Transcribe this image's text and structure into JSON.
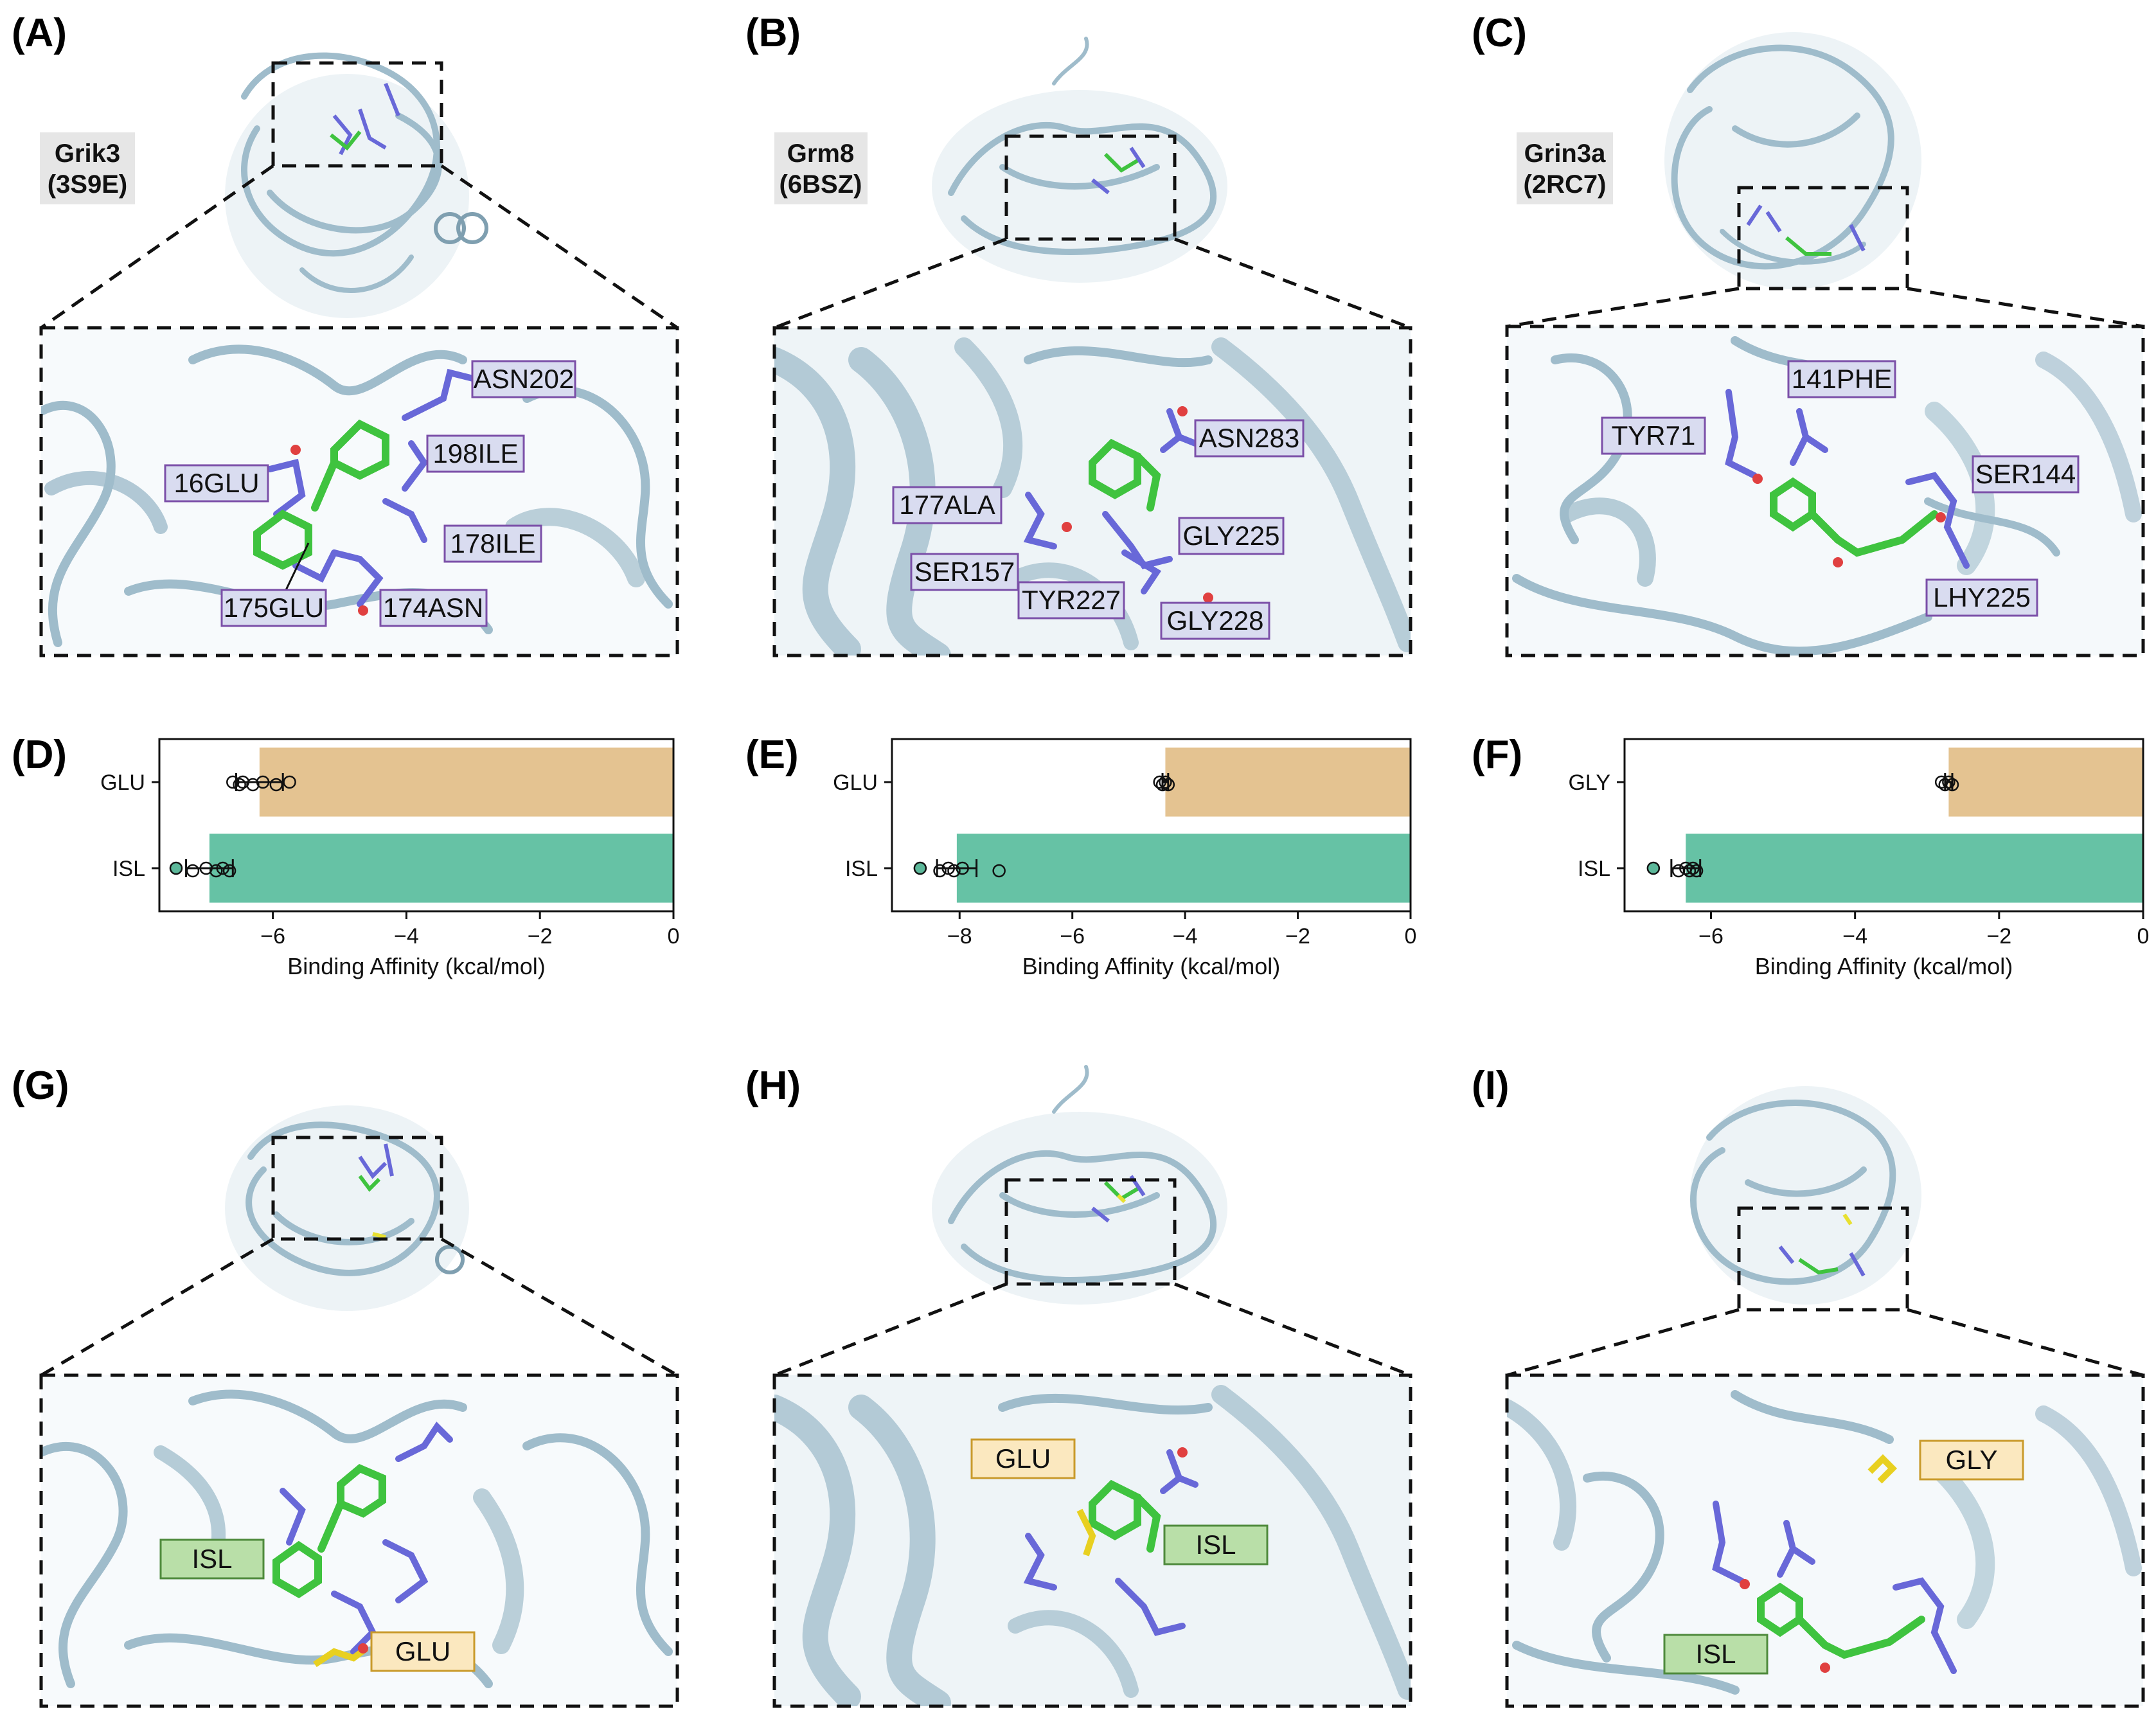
{
  "panels": {
    "A": {
      "label": "(A)",
      "protein": [
        "Grik3",
        "(3S9E)"
      ],
      "residues": [
        "ASN202",
        "198ILE",
        "16GLU",
        "178ILE",
        "175GLU",
        "174ASN"
      ]
    },
    "B": {
      "label": "(B)",
      "protein": [
        "Grm8",
        "(6BSZ)"
      ],
      "residues": [
        "ASN283",
        "177ALA",
        "GLY225",
        "SER157",
        "TYR227",
        "GLY228"
      ]
    },
    "C": {
      "label": "(C)",
      "protein": [
        "Grin3a",
        "(2RC7)"
      ],
      "residues": [
        "141PHE",
        "TYR71",
        "SER144",
        "LHY225"
      ]
    },
    "D": {
      "label": "(D)"
    },
    "E": {
      "label": "(E)"
    },
    "F": {
      "label": "(F)"
    },
    "G": {
      "label": "(G)",
      "molecules": [
        "ISL",
        "GLU"
      ]
    },
    "H": {
      "label": "(H)",
      "molecules": [
        "GLU",
        "ISL"
      ]
    },
    "I": {
      "label": "(I)",
      "molecules": [
        "GLY",
        "ISL"
      ]
    }
  },
  "colors": {
    "ligand_bar_glu_gly": "#e4c391",
    "isl_bar": "#66c2a5",
    "isl_dot": "#5cb89a",
    "residue_box_fill": "#d9dcf0",
    "residue_box_border": "#7b4fa8",
    "isl_tag_fill": "#b9dfa8",
    "isl_tag_border": "#4e8a3c",
    "glu_tag_fill": "#fbe8bf",
    "glu_tag_border": "#c99a2b",
    "protein_ribbon": "#9fbccb",
    "residue_sticks": "#6868d8",
    "ligand_sticks": "#3fc33f"
  },
  "chart_data": [
    {
      "type": "bar",
      "orientation": "horizontal",
      "panel": "D",
      "categories": [
        "GLU",
        "ISL"
      ],
      "values": [
        -6.2,
        -6.95
      ],
      "points": [
        [
          -6.6,
          -6.5,
          -6.45,
          -6.3,
          -6.15,
          -5.95,
          -5.75
        ],
        [
          -7.45,
          -7.2,
          -7.0,
          -6.85,
          -6.75,
          -6.65
        ]
      ],
      "error": [
        0.35,
        0.35
      ],
      "xlabel": "Binding Affinity (kcal/mol)",
      "xlim": [
        -7.7,
        0
      ],
      "xticks": [
        -6,
        -4,
        -2,
        0
      ],
      "xtick_labels": [
        "−6",
        "−4",
        "−2",
        "0"
      ]
    },
    {
      "type": "bar",
      "orientation": "horizontal",
      "panel": "E",
      "categories": [
        "GLU",
        "ISL"
      ],
      "values": [
        -4.35,
        -8.05
      ],
      "points": [
        [
          -4.45,
          -4.4,
          -4.35,
          -4.3
        ],
        [
          -8.7,
          -8.35,
          -8.2,
          -8.1,
          -7.95,
          -7.3
        ]
      ],
      "error": [
        0.05,
        0.35
      ],
      "xlabel": "Binding Affinity (kcal/mol)",
      "xlim": [
        -9.2,
        0
      ],
      "xticks": [
        -8,
        -6,
        -4,
        -2,
        0
      ],
      "xtick_labels": [
        "−8",
        "−6",
        "−4",
        "−2",
        "0"
      ]
    },
    {
      "type": "bar",
      "orientation": "horizontal",
      "panel": "F",
      "categories": [
        "GLY",
        "ISL"
      ],
      "values": [
        -2.7,
        -6.35
      ],
      "points": [
        [
          -2.8,
          -2.75,
          -2.7,
          -2.65
        ],
        [
          -6.8,
          -6.45,
          -6.35,
          -6.3,
          -6.25,
          -6.2
        ]
      ],
      "error": [
        0.05,
        0.2
      ],
      "xlabel": "Binding Affinity (kcal/mol)",
      "xlim": [
        -7.2,
        0
      ],
      "xticks": [
        -6,
        -4,
        -2,
        0
      ],
      "xtick_labels": [
        "−6",
        "−4",
        "−2",
        "0"
      ]
    }
  ]
}
